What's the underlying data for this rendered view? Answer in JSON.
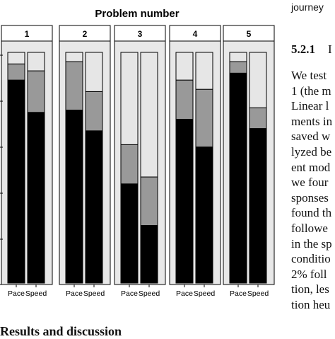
{
  "figure": {
    "title": "Problem number",
    "x_labels": [
      "Pace",
      "Speed"
    ],
    "colors": {
      "black": "#000000",
      "dark_gray": "#999999",
      "light_gray": "#e6e6e6",
      "panel_bg": "#e8e8e8"
    }
  },
  "chart_data": {
    "type": "bar",
    "stacked": true,
    "title": "Problem number",
    "facets": [
      "1",
      "2",
      "3",
      "4",
      "5"
    ],
    "categories": [
      "Pace",
      "Speed"
    ],
    "ylim": [
      0,
      1
    ],
    "series": [
      {
        "values_by_facet": [
          [
            0.88,
            0.74
          ],
          [
            0.75,
            0.66
          ],
          [
            0.43,
            0.25
          ],
          [
            0.71,
            0.59
          ],
          [
            0.91,
            0.67
          ]
        ]
      },
      {
        "values_by_facet": [
          [
            0.07,
            0.18
          ],
          [
            0.21,
            0.17
          ],
          [
            0.17,
            0.21
          ],
          [
            0.17,
            0.25
          ],
          [
            0.05,
            0.09
          ]
        ]
      },
      {
        "values_by_facet": [
          [
            0.05,
            0.08
          ],
          [
            0.04,
            0.17
          ],
          [
            0.4,
            0.54
          ],
          [
            0.12,
            0.16
          ],
          [
            0.04,
            0.24
          ]
        ]
      }
    ]
  },
  "text": {
    "top_partial": "journey",
    "subsection_number": "5.2.1",
    "subsection_title_fragment": "I",
    "lines": [
      "We test",
      "1 (the m",
      "Linear l",
      "ments in",
      "saved w",
      "lyzed be",
      "ent mod",
      "we four",
      "sponses",
      "found th",
      "followe",
      "in the sp",
      "conditio",
      "2% foll",
      "tion, les",
      "tion heu"
    ],
    "bottom_heading": "Results and discussion"
  }
}
